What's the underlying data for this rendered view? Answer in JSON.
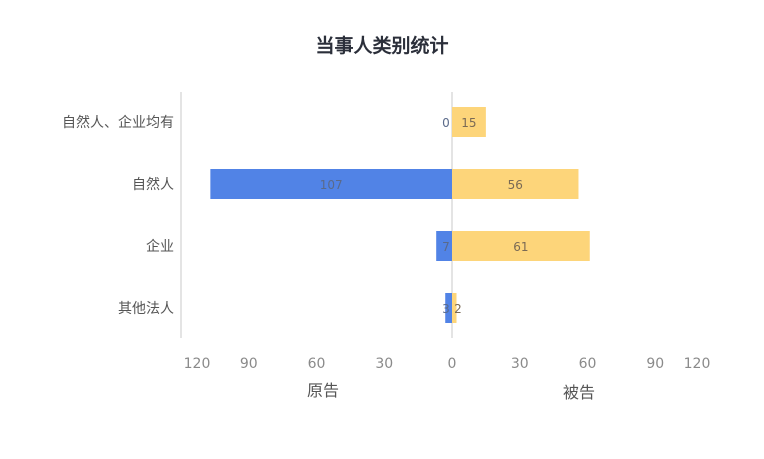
{
  "chart_data": {
    "type": "bar",
    "orientation": "horizontal",
    "layout": "butterfly",
    "title": "当事人类别统计",
    "categories": [
      "自然人、企业均有",
      "自然人",
      "企业",
      "其他法人"
    ],
    "series": [
      {
        "name": "原告",
        "side": "left",
        "color": "#5183e6",
        "values": [
          0,
          107,
          7,
          3
        ]
      },
      {
        "name": "被告",
        "side": "right",
        "color": "#fdd57a",
        "values": [
          15,
          56,
          61,
          2
        ]
      }
    ],
    "left_axis": {
      "label": "原告",
      "range": [
        0,
        120
      ],
      "reversed": true,
      "ticks": [
        "120",
        "90",
        "60",
        "30",
        "0"
      ]
    },
    "right_axis": {
      "label": "被告",
      "range": [
        0,
        120
      ],
      "ticks": [
        "0",
        "30",
        "60",
        "90",
        "120"
      ]
    },
    "grid": false,
    "legend": "none",
    "colors": {
      "title": "#2b2f3a",
      "axis_line": "#c8c8c8",
      "tick_label": "#8a8a8a",
      "category_label": "#555555",
      "data_label": "#7a6a55"
    }
  }
}
